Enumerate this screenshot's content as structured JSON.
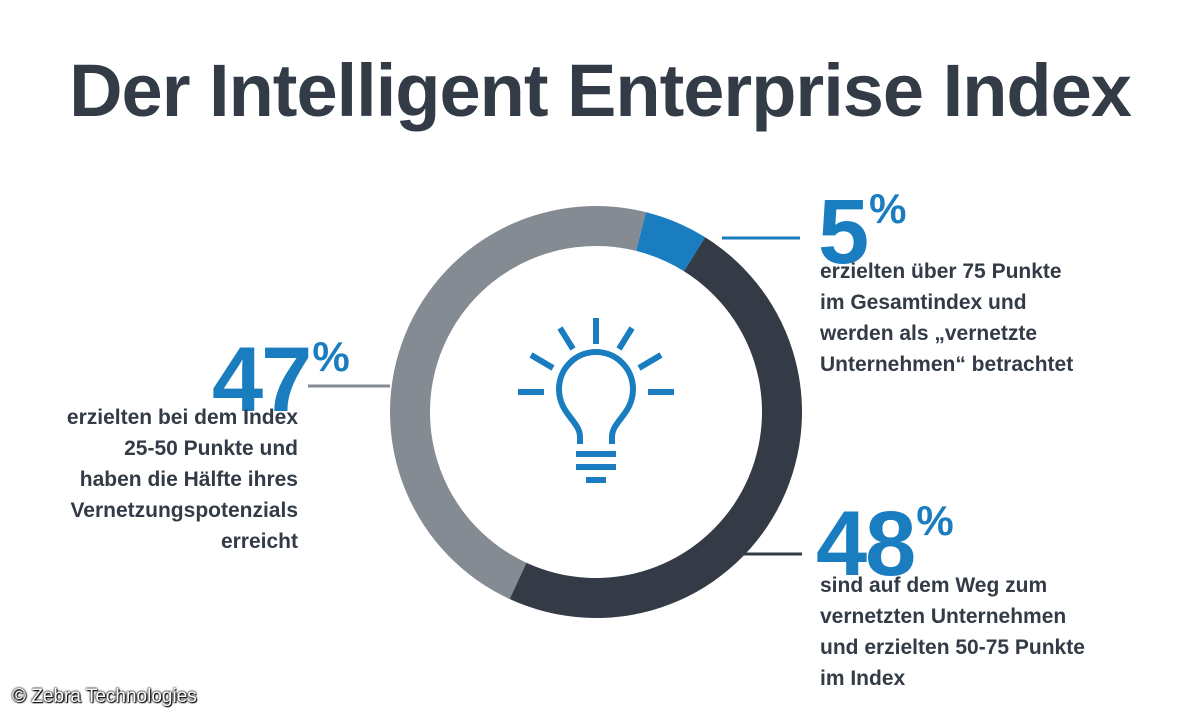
{
  "title": "Der Intelligent Enterprise Index",
  "credit": "© Zebra Technologies",
  "colors": {
    "blue": "#1a7dc0",
    "dark": "#343b46",
    "gray": "#858b92",
    "text": "#333b46"
  },
  "icon": "lightbulb-icon",
  "chart_data": {
    "type": "pie",
    "donut": true,
    "segments": [
      {
        "value": 5,
        "value_label": "5",
        "unit": "%",
        "color": "#1a7dc0",
        "description": [
          "erzielten über 75 Punkte",
          "im Gesamtindex und",
          "werden als „vernetzte",
          "Unternehmen“ betrachtet"
        ]
      },
      {
        "value": 48,
        "value_label": "48",
        "unit": "%",
        "color": "#343b46",
        "description": [
          "sind auf dem Weg zum",
          "vernetzten Unternehmen",
          "und erzielten 50-75 Punkte",
          "im Index"
        ]
      },
      {
        "value": 47,
        "value_label": "47",
        "unit": "%",
        "color": "#858b92",
        "description": [
          "erzielten bei dem Index",
          "25-50 Punkte und",
          "haben die Hälfte ihres",
          "Vernetzungspotenzials",
          "erreicht"
        ]
      }
    ]
  }
}
